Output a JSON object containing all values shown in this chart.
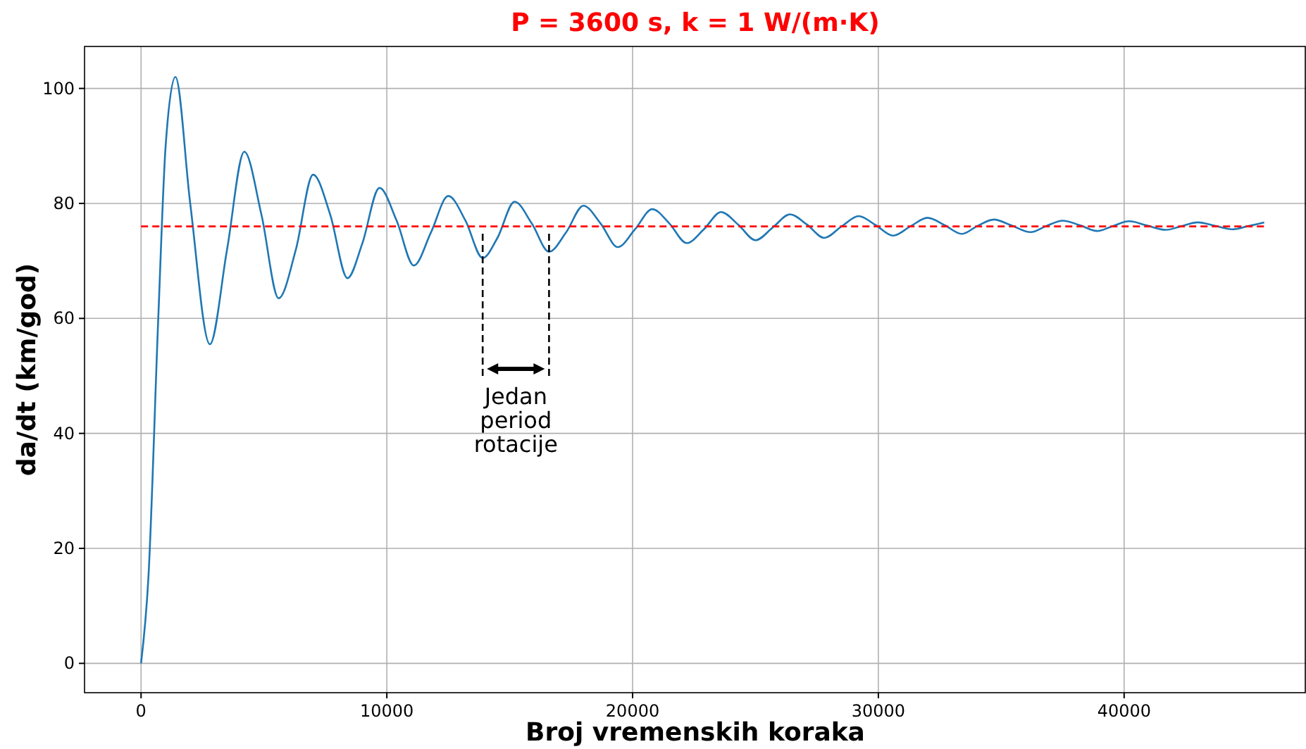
{
  "chart_data": {
    "type": "line",
    "title": "P = 3600 s, k = 1 W/(m·K)",
    "xlabel": "Broj vremenskih koraka",
    "ylabel": "da/dt (km/god)",
    "xlim": [
      -2300,
      47400
    ],
    "ylim": [
      -5.1,
      107.3
    ],
    "xticks": [
      0,
      10000,
      20000,
      30000,
      40000
    ],
    "yticks": [
      0,
      20,
      40,
      60,
      80,
      100
    ],
    "grid": true,
    "series": [
      {
        "color": "#1f77b4",
        "line_style": "solid",
        "x": [
          0,
          300,
          700,
          1000,
          1400,
          2000,
          2800,
          3500,
          4200,
          4900,
          5600,
          6300,
          7000,
          7700,
          8400,
          9000,
          9700,
          10400,
          11100,
          11800,
          12500,
          13200,
          13900,
          14500,
          15200,
          15900,
          16600,
          17300,
          18000,
          18700,
          19400,
          20100,
          20800,
          21500,
          22200,
          22900,
          23600,
          24300,
          25000,
          25700,
          26400,
          27100,
          27800,
          28500,
          29200,
          29900,
          30600,
          31300,
          32000,
          32700,
          33400,
          34000,
          34700,
          35400,
          36200,
          36800,
          37500,
          38200,
          38900,
          39500,
          40200,
          40900,
          41700,
          42300,
          43000,
          43700,
          44400,
          45000,
          45700
        ],
        "values": [
          0,
          15,
          60,
          90,
          102,
          80,
          55.5,
          72,
          89,
          78,
          63.5,
          72,
          85,
          78,
          67,
          73,
          82.7,
          77,
          69.2,
          75,
          81.3,
          77,
          70.5,
          74,
          80.3,
          76.5,
          71.6,
          75,
          79.6,
          76.5,
          72.4,
          75.5,
          79,
          76.5,
          73.1,
          75.5,
          78.5,
          76.3,
          73.6,
          75.8,
          78.1,
          76.3,
          74,
          76,
          77.8,
          76.2,
          74.4,
          76,
          77.5,
          76.2,
          74.7,
          76,
          77.2,
          76.2,
          75,
          76,
          77,
          76.2,
          75.2,
          76,
          76.9,
          76.2,
          75.4,
          76,
          76.7,
          76.1,
          75.5,
          76,
          76.7
        ]
      },
      {
        "color": "#ff0000",
        "line_style": "dashed",
        "x": [
          0,
          45700
        ],
        "values": [
          76,
          76
        ]
      },
      {
        "color": "#000000",
        "line_style": "dashed",
        "x": [
          13900,
          13900
        ],
        "values": [
          50,
          75
        ]
      },
      {
        "color": "#000000",
        "line_style": "dashed",
        "x": [
          16600,
          16600
        ],
        "values": [
          50,
          75
        ]
      }
    ],
    "annotations": [
      "Jedan\nperiod\nrotacije"
    ]
  }
}
